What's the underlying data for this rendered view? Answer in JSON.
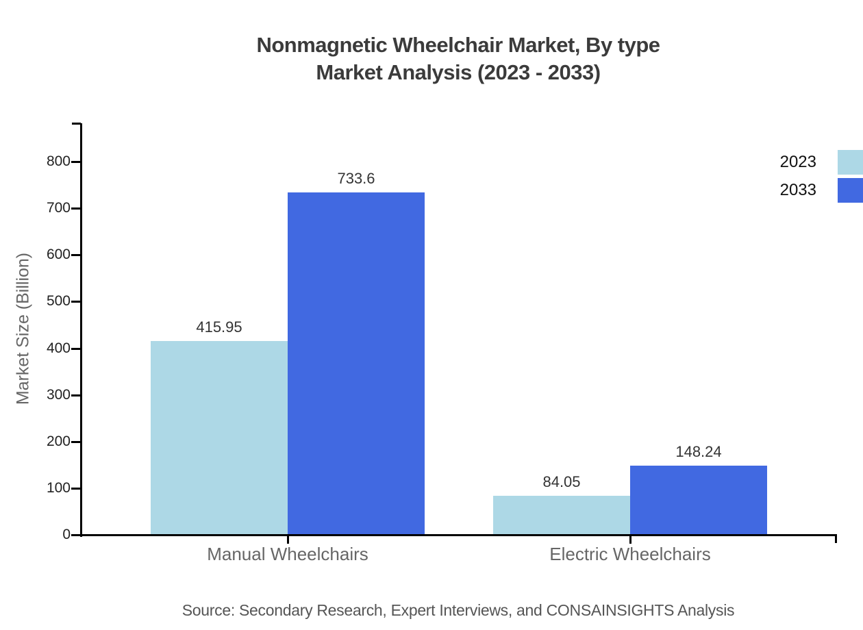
{
  "title": {
    "line1": "Nonmagnetic Wheelchair Market, By type",
    "line2": "Market Analysis (2023 - 2033)"
  },
  "source_note": "Source: Secondary Research, Expert Interviews, and CONSAINSIGHTS Analysis",
  "chart_data": {
    "type": "bar",
    "title": "Nonmagnetic Wheelchair Market, By type Market Analysis (2023 - 2033)",
    "categories": [
      "Manual Wheelchairs",
      "Electric Wheelchairs"
    ],
    "series": [
      {
        "name": "2023",
        "color": "#ADD8E6",
        "values": [
          415.95,
          84.05
        ]
      },
      {
        "name": "2033",
        "color": "#4169E1",
        "values": [
          733.6,
          148.24
        ]
      }
    ],
    "bar_value_labels": [
      "415.95",
      "733.6",
      "84.05",
      "148.24"
    ],
    "xlabel": "",
    "ylabel": "Market Size (Billion)",
    "ylim": [
      0,
      880
    ],
    "yticks": [
      0,
      100,
      200,
      300,
      400,
      500,
      600,
      700,
      800
    ],
    "grid": false,
    "legend_position": "top-right",
    "axis_color": "#000000",
    "text_colors": {
      "title": "#3b3b3b",
      "tick_labels": "#222222",
      "category_labels": "#666666",
      "value_labels": "#333333",
      "source": "#555555"
    }
  }
}
